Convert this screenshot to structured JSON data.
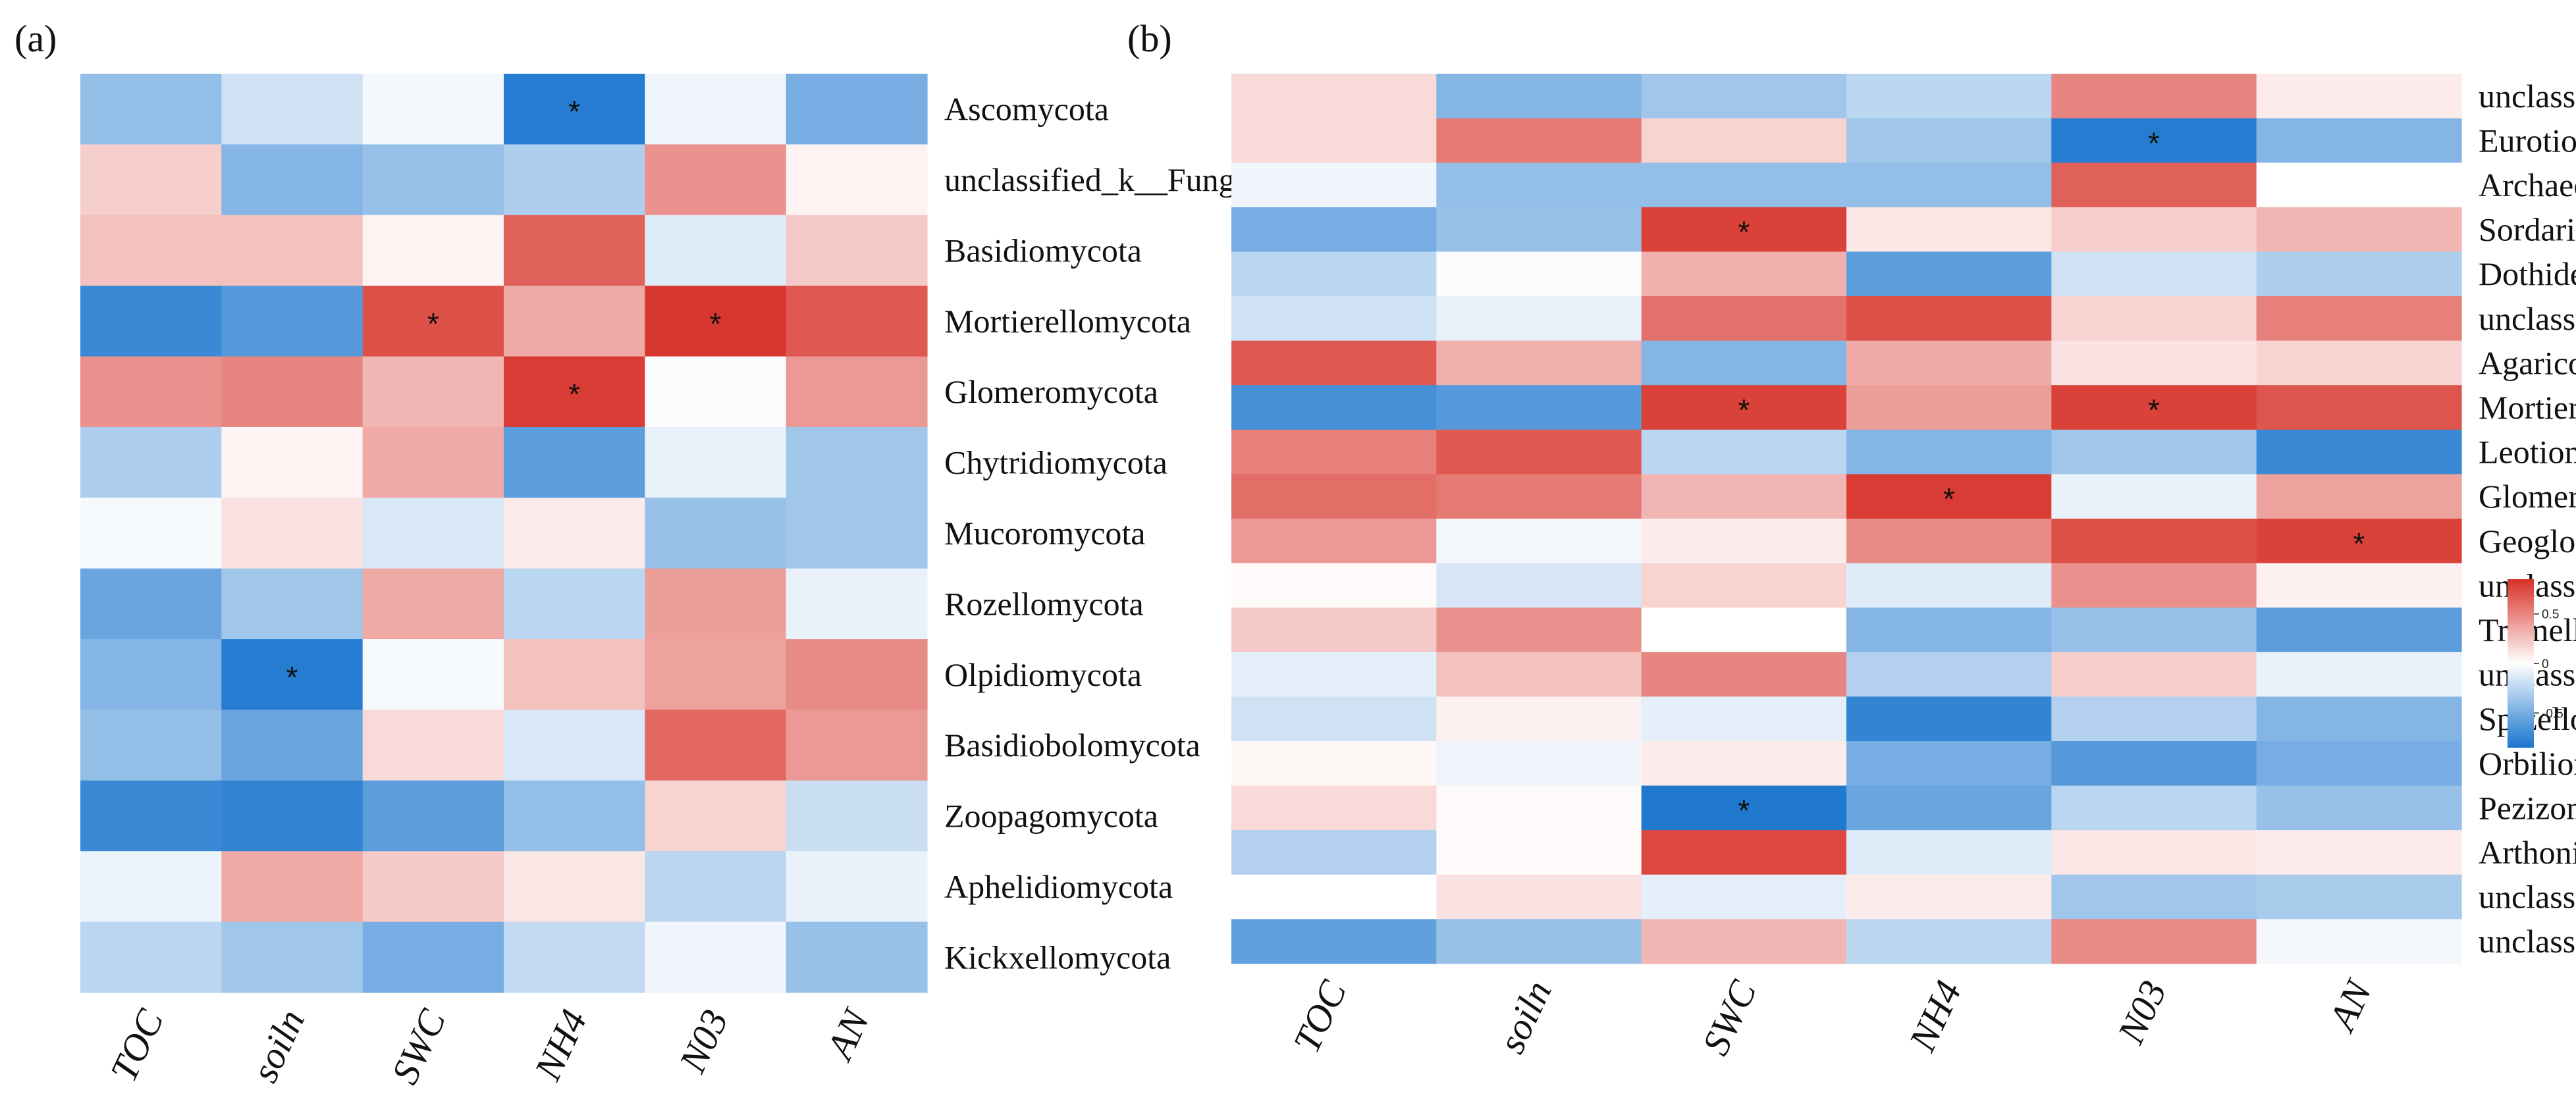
{
  "chart_data": [
    {
      "type": "heatmap",
      "panel_label": "(a)",
      "columns": [
        "TOC",
        "soiln",
        "SWC",
        "NH4",
        "N03",
        "AN"
      ],
      "rows": [
        "Ascomycota",
        "unclassified_k__Fungi",
        "Basidiomycota",
        "Mortierellomycota",
        "Glomeromycota",
        "Chytridiomycota",
        "Mucoromycota",
        "Rozellomycota",
        "Olpidiomycota",
        "Basidiobolomycota",
        "Zoopagomycota",
        "Aphelidiomycota",
        "Kickxellomycota"
      ],
      "values": [
        [
          -0.4,
          -0.18,
          -0.04,
          -0.8,
          -0.06,
          -0.5
        ],
        [
          0.2,
          -0.45,
          -0.38,
          -0.3,
          0.45,
          0.05
        ],
        [
          0.25,
          0.25,
          0.05,
          0.65,
          -0.12,
          0.22
        ],
        [
          -0.72,
          -0.62,
          0.72,
          0.35,
          0.82,
          0.68
        ],
        [
          0.45,
          0.5,
          0.3,
          0.8,
          -0.02,
          0.42
        ],
        [
          -0.3,
          0.05,
          0.35,
          -0.6,
          -0.08,
          -0.35
        ],
        [
          -0.03,
          0.12,
          -0.14,
          0.08,
          -0.38,
          -0.35
        ],
        [
          -0.55,
          -0.35,
          0.35,
          -0.25,
          0.4,
          -0.08
        ],
        [
          -0.45,
          -0.8,
          -0.03,
          0.25,
          0.38,
          0.48
        ],
        [
          -0.4,
          -0.55,
          0.15,
          -0.14,
          0.62,
          0.42
        ],
        [
          -0.72,
          -0.75,
          -0.6,
          -0.4,
          0.18,
          -0.2
        ],
        [
          -0.07,
          0.35,
          0.22,
          0.1,
          -0.25,
          -0.08
        ],
        [
          -0.25,
          -0.35,
          -0.5,
          -0.22,
          -0.06,
          -0.38
        ]
      ],
      "significant": [
        [
          0,
          3
        ],
        [
          3,
          2
        ],
        [
          3,
          4
        ],
        [
          4,
          3
        ],
        [
          8,
          1
        ]
      ],
      "significance_marker": "*"
    },
    {
      "type": "heatmap",
      "panel_label": "(b)",
      "columns": [
        "TOC",
        "soiln",
        "SWC",
        "NH4",
        "N03",
        "AN"
      ],
      "rows": [
        "unclassified_k__Fungi",
        "Eurotiomycetes",
        "Archaeorhizomycetes",
        "Sordariomycetes",
        "Dothideomycetes",
        "unclassified_p__Basidiomycota",
        "Agaricomycetes",
        "Mortierellomycetes",
        "Leotiomycetes",
        "Glomeromycetes",
        "Geoglossomycetes",
        "unclassified_p__Ascomycota",
        "Tremellomycetes",
        "unclassified_p__Chytridiomycota",
        "Spizellomycetes",
        "Orbiliomycetes",
        "Pezizomycetes",
        "Arthoniomycetes",
        "unclassified_p__Mucoromycota",
        "unclassified_p__Rozellomycota"
      ],
      "values": [
        [
          0.15,
          -0.45,
          -0.35,
          -0.25,
          0.5,
          0.08
        ],
        [
          0.15,
          0.55,
          0.18,
          -0.35,
          -0.8,
          -0.45
        ],
        [
          -0.06,
          -0.4,
          -0.4,
          -0.4,
          0.65,
          0.0
        ],
        [
          -0.5,
          -0.38,
          0.78,
          0.1,
          0.2,
          0.3
        ],
        [
          -0.25,
          -0.02,
          0.32,
          -0.6,
          -0.18,
          -0.3
        ],
        [
          -0.18,
          -0.08,
          0.58,
          0.72,
          0.18,
          0.52
        ],
        [
          0.68,
          0.32,
          -0.45,
          0.35,
          0.12,
          0.18
        ],
        [
          -0.68,
          -0.62,
          0.78,
          0.4,
          0.78,
          0.7
        ],
        [
          0.52,
          0.68,
          -0.25,
          -0.45,
          -0.35,
          -0.72
        ],
        [
          0.6,
          0.55,
          0.3,
          0.8,
          -0.08,
          0.38
        ],
        [
          0.42,
          -0.04,
          0.08,
          0.48,
          0.72,
          0.78
        ],
        [
          0.02,
          -0.15,
          0.18,
          -0.12,
          0.45,
          0.06
        ],
        [
          0.22,
          0.45,
          0.0,
          -0.45,
          -0.38,
          -0.6
        ],
        [
          -0.1,
          0.25,
          0.5,
          -0.28,
          0.2,
          -0.08
        ],
        [
          -0.18,
          0.06,
          -0.1,
          -0.75,
          -0.28,
          -0.45
        ],
        [
          0.03,
          -0.06,
          0.08,
          -0.5,
          -0.62,
          -0.5
        ],
        [
          0.15,
          0.02,
          -0.82,
          -0.55,
          -0.25,
          -0.38
        ],
        [
          -0.28,
          0.02,
          0.75,
          -0.12,
          0.1,
          0.08
        ],
        [
          0.0,
          0.12,
          -0.1,
          0.08,
          -0.35,
          -0.32
        ],
        [
          -0.58,
          -0.38,
          0.3,
          -0.25,
          0.48,
          -0.04
        ]
      ],
      "significant": [
        [
          1,
          4
        ],
        [
          3,
          2
        ],
        [
          7,
          2
        ],
        [
          7,
          4
        ],
        [
          9,
          3
        ],
        [
          10,
          5
        ],
        [
          16,
          2
        ]
      ],
      "significance_marker": "*"
    }
  ],
  "colorbar": {
    "ticks": [
      "0.5",
      "0",
      "-0.5"
    ],
    "tick_values": [
      0.5,
      0,
      -0.5
    ],
    "range": [
      -0.85,
      0.85
    ],
    "colors": {
      "low": "#1874cd",
      "mid": "#ffffff",
      "high": "#d73027"
    }
  }
}
